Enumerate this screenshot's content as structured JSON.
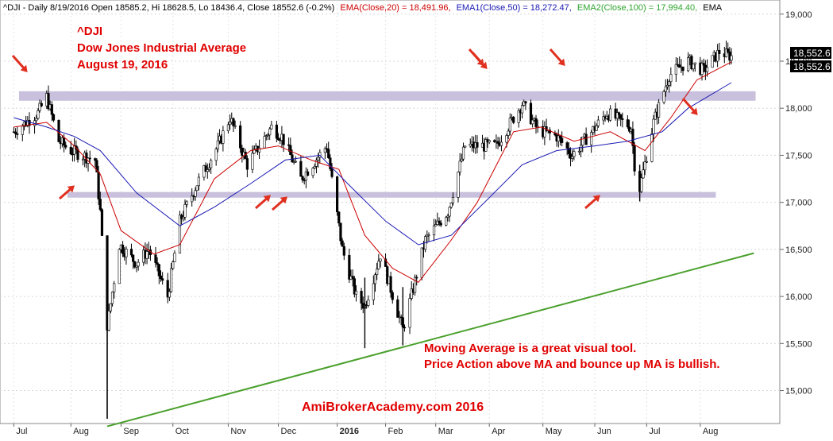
{
  "header": {
    "symbol_line": "^DJI - Daily 8/19/2016 Open 18585.2, Hi 18628.5, Lo 18436.4, Close 18552.6 (-0.2%)",
    "ema20": "EMA(Close,20) = 18,491.96,",
    "ema50": "EMA1(Close,50) = 18,272.47,",
    "ema100": "EMA2(Close,100) = 17,994.40,",
    "ema_tail": "EMA"
  },
  "annotations": {
    "title_ticker": "^DJI",
    "title_name": "Dow Jones Industrial Average",
    "title_date": "August 19, 2016",
    "note_line1": "Moving Average is a great visual tool.",
    "note_line2": "Price Action above MA and bounce up MA is bullish.",
    "watermark": "AmiBrokerAcademy.com  2016"
  },
  "price_labels": [
    "18,552.6",
    "18,552.6"
  ],
  "colors": {
    "ema20": "#cc0000",
    "ema50": "#1a1ab4",
    "trendline": "#4aa02c",
    "zone": "#c8c0dc",
    "arrow": "#e03020",
    "annotation_text": "#e00000"
  },
  "chart_data": {
    "type": "line",
    "title": "",
    "xlabel": "",
    "ylabel": "",
    "ylim": [
      14650,
      19150
    ],
    "y_ticks": [
      "19,000",
      "18,500",
      "18,000",
      "17,500",
      "17,000",
      "16,500",
      "16,000",
      "15,500",
      "15,000"
    ],
    "y_tick_values": [
      19000,
      18500,
      18000,
      17500,
      17000,
      16500,
      16000,
      15500,
      15000
    ],
    "x_ticks": [
      "Jul",
      "Aug",
      "Sep",
      "Oct",
      "Nov",
      "Dec",
      "2016",
      "Feb",
      "Mar",
      "Apr",
      "May",
      "Jun",
      "Jul",
      "Aug"
    ],
    "grid": true,
    "resistance_zone": [
      18080,
      18180
    ],
    "support_zone": [
      17050,
      17110
    ],
    "trendline": {
      "start_date": "2015-08-24",
      "start": 14620,
      "end_date": "2016-09-01",
      "end": 16460
    },
    "series": [
      {
        "name": "Close",
        "x": [
          "2015-07-01",
          "2015-07-15",
          "2015-07-20",
          "2015-07-27",
          "2015-08-03",
          "2015-08-17",
          "2015-08-20",
          "2015-08-24",
          "2015-08-25",
          "2015-08-31",
          "2015-09-10",
          "2015-09-17",
          "2015-09-28",
          "2015-10-05",
          "2015-10-15",
          "2015-10-27",
          "2015-11-03",
          "2015-11-13",
          "2015-11-27",
          "2015-12-03",
          "2015-12-14",
          "2015-12-29",
          "2016-01-07",
          "2016-01-15",
          "2016-01-20",
          "2016-01-29",
          "2016-02-11",
          "2016-02-24",
          "2016-03-08",
          "2016-03-18",
          "2016-04-05",
          "2016-04-20",
          "2016-04-29",
          "2016-05-10",
          "2016-05-19",
          "2016-06-08",
          "2016-06-22",
          "2016-06-24",
          "2016-06-27",
          "2016-07-05",
          "2016-07-14",
          "2016-07-25",
          "2016-08-03",
          "2016-08-12",
          "2016-08-19"
        ],
        "values": [
          17750,
          17950,
          18120,
          17650,
          17550,
          17450,
          16900,
          15700,
          15800,
          16550,
          16350,
          16500,
          16000,
          16800,
          17200,
          17600,
          17900,
          17400,
          17800,
          17700,
          17250,
          17600,
          16500,
          16000,
          15900,
          16450,
          15650,
          16600,
          16900,
          17600,
          17600,
          18050,
          17770,
          17700,
          17500,
          17950,
          17800,
          17400,
          17150,
          17850,
          18350,
          18500,
          18400,
          18600,
          18552
        ]
      },
      {
        "name": "EMA(Close,20)",
        "x": [
          "2015-07-01",
          "2015-07-20",
          "2015-08-05",
          "2015-08-20",
          "2015-09-01",
          "2015-09-20",
          "2015-10-05",
          "2015-10-25",
          "2015-11-15",
          "2015-12-01",
          "2015-12-20",
          "2016-01-05",
          "2016-01-20",
          "2016-02-05",
          "2016-02-20",
          "2016-03-10",
          "2016-03-25",
          "2016-04-15",
          "2016-05-01",
          "2016-05-20",
          "2016-06-10",
          "2016-06-30",
          "2016-07-15",
          "2016-07-30",
          "2016-08-19"
        ],
        "values": [
          17800,
          17850,
          17600,
          17300,
          16700,
          16450,
          16550,
          17250,
          17550,
          17600,
          17450,
          17350,
          16650,
          16300,
          16150,
          16600,
          17000,
          17750,
          17800,
          17650,
          17750,
          17550,
          17900,
          18300,
          18492
        ]
      },
      {
        "name": "EMA1(Close,50)",
        "x": [
          "2015-07-01",
          "2015-07-20",
          "2015-08-05",
          "2015-08-20",
          "2015-09-10",
          "2015-10-05",
          "2015-10-25",
          "2015-11-15",
          "2015-12-05",
          "2015-12-25",
          "2016-01-10",
          "2016-02-01",
          "2016-02-20",
          "2016-03-10",
          "2016-04-01",
          "2016-04-20",
          "2016-05-10",
          "2016-06-01",
          "2016-06-20",
          "2016-07-10",
          "2016-07-25",
          "2016-08-19"
        ],
        "values": [
          17900,
          17800,
          17700,
          17550,
          17100,
          16750,
          16950,
          17200,
          17450,
          17500,
          17200,
          16800,
          16550,
          16650,
          17050,
          17400,
          17550,
          17600,
          17650,
          17750,
          18000,
          18272
        ]
      }
    ]
  }
}
